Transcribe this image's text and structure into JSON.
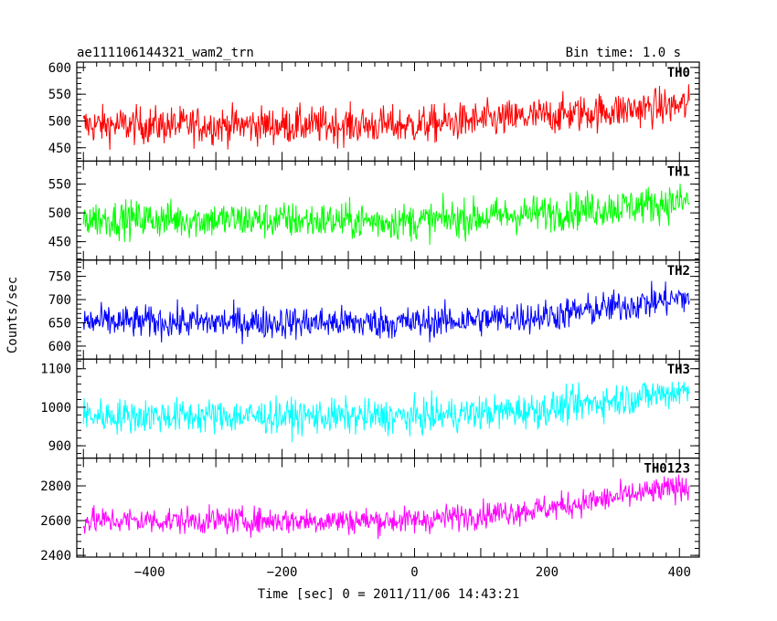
{
  "header": {
    "left_title": "ae111106144321_wam2_trn",
    "right_title": "Bin time: 1.0 s"
  },
  "axes": {
    "xlabel": "Time [sec] 0 = 2011/11/06 14:43:21",
    "ylabel": "Counts/sec"
  },
  "chart_data": {
    "type": "line",
    "x_range": [
      -510,
      430
    ],
    "x_ticks": [
      -400,
      -200,
      0,
      200,
      400
    ],
    "x_tick_labels": [
      "−400",
      "−200",
      "0",
      "200",
      "400"
    ],
    "data_x_range": [
      -500,
      415
    ],
    "bin_time_s": 1.0,
    "grid": false,
    "panels": [
      {
        "name": "TH0",
        "color": "#ff0000",
        "ylim": [
          425,
          610
        ],
        "yticks": [
          450,
          500,
          550,
          600
        ],
        "trend": [
          [
            -500,
            492
          ],
          [
            0,
            492
          ],
          [
            150,
            505
          ],
          [
            415,
            530
          ]
        ],
        "noise": 25
      },
      {
        "name": "TH1",
        "color": "#00ff00",
        "ylim": [
          418,
          590
        ],
        "yticks": [
          450,
          500,
          550
        ],
        "trend": [
          [
            -500,
            490
          ],
          [
            0,
            485
          ],
          [
            200,
            500
          ],
          [
            415,
            520
          ]
        ],
        "noise": 23
      },
      {
        "name": "TH2",
        "color": "#0000ff",
        "ylim": [
          572,
          785
        ],
        "yticks": [
          600,
          650,
          700,
          750
        ],
        "trend": [
          [
            -500,
            652
          ],
          [
            0,
            650
          ],
          [
            200,
            665
          ],
          [
            415,
            705
          ]
        ],
        "noise": 25
      },
      {
        "name": "TH3",
        "color": "#00ffff",
        "ylim": [
          868,
          1125
        ],
        "yticks": [
          900,
          1000,
          1100
        ],
        "trend": [
          [
            -500,
            978
          ],
          [
            0,
            975
          ],
          [
            200,
            995
          ],
          [
            415,
            1045
          ]
        ],
        "noise": 32
      },
      {
        "name": "TH0123",
        "color": "#ff00ff",
        "ylim": [
          2390,
          2960
        ],
        "yticks": [
          2400,
          2600,
          2800
        ],
        "trend": [
          [
            -500,
            2600
          ],
          [
            0,
            2600
          ],
          [
            200,
            2670
          ],
          [
            415,
            2800
          ]
        ],
        "noise": 55
      }
    ]
  }
}
